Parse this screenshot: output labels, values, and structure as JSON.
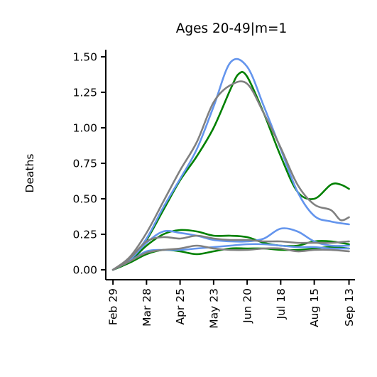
{
  "chart_data": {
    "type": "line",
    "title": "Ages 20-49|m=1",
    "xlabel": "",
    "ylabel": "Deaths",
    "ylim": [
      -0.07,
      1.55
    ],
    "xlim": [
      "2020-02-23",
      "2020-09-18"
    ],
    "grid": false,
    "legend": "none",
    "x_ticks": [
      "2020-02-29",
      "2020-03-28",
      "2020-04-25",
      "2020-05-23",
      "2020-06-20",
      "2020-07-18",
      "2020-08-15",
      "2020-09-13"
    ],
    "x_tick_labels": [
      "Feb 29",
      "Mar 28",
      "Apr 25",
      "May 23",
      "Jun 20",
      "Jul 18",
      "Aug 15",
      "Sep 13"
    ],
    "y_ticks": [
      0.0,
      0.25,
      0.5,
      0.75,
      1.0,
      1.25,
      1.5
    ],
    "y_tick_labels": [
      "0.00",
      "0.25",
      "0.50",
      "0.75",
      "1.00",
      "1.25",
      "1.50"
    ],
    "series": [
      {
        "color": "#008000",
        "x": [
          "2020-02-29",
          "2020-03-14",
          "2020-03-28",
          "2020-04-11",
          "2020-04-25",
          "2020-05-09",
          "2020-05-23",
          "2020-06-06",
          "2020-06-13",
          "2020-06-20",
          "2020-07-04",
          "2020-07-18",
          "2020-08-01",
          "2020-08-15",
          "2020-08-29",
          "2020-09-06",
          "2020-09-13"
        ],
        "y": [
          0.0,
          0.06,
          0.21,
          0.42,
          0.63,
          0.8,
          1.0,
          1.27,
          1.38,
          1.36,
          1.1,
          0.8,
          0.55,
          0.5,
          0.6,
          0.6,
          0.57
        ]
      },
      {
        "color": "#6495ED",
        "x": [
          "2020-02-29",
          "2020-03-14",
          "2020-03-28",
          "2020-04-11",
          "2020-04-25",
          "2020-05-09",
          "2020-05-23",
          "2020-06-06",
          "2020-06-20",
          "2020-07-04",
          "2020-07-18",
          "2020-08-01",
          "2020-08-15",
          "2020-08-29",
          "2020-09-13"
        ],
        "y": [
          0.0,
          0.07,
          0.22,
          0.44,
          0.64,
          0.85,
          1.15,
          1.46,
          1.43,
          1.15,
          0.85,
          0.55,
          0.38,
          0.34,
          0.32
        ]
      },
      {
        "color": "#808080",
        "x": [
          "2020-02-29",
          "2020-03-14",
          "2020-03-28",
          "2020-04-11",
          "2020-04-25",
          "2020-05-09",
          "2020-05-23",
          "2020-06-06",
          "2020-06-20",
          "2020-07-04",
          "2020-07-18",
          "2020-08-01",
          "2020-08-15",
          "2020-08-29",
          "2020-09-06",
          "2020-09-13"
        ],
        "y": [
          0.0,
          0.09,
          0.26,
          0.48,
          0.7,
          0.9,
          1.18,
          1.3,
          1.31,
          1.1,
          0.86,
          0.6,
          0.46,
          0.42,
          0.35,
          0.37
        ]
      },
      {
        "color": "#008000",
        "x": [
          "2020-02-29",
          "2020-03-14",
          "2020-03-28",
          "2020-04-11",
          "2020-04-25",
          "2020-05-09",
          "2020-05-23",
          "2020-06-06",
          "2020-06-20",
          "2020-07-04",
          "2020-07-18",
          "2020-08-01",
          "2020-08-15",
          "2020-08-29",
          "2020-09-13"
        ],
        "y": [
          0.0,
          0.06,
          0.17,
          0.25,
          0.28,
          0.27,
          0.24,
          0.24,
          0.23,
          0.19,
          0.17,
          0.17,
          0.2,
          0.2,
          0.18
        ]
      },
      {
        "color": "#008000",
        "x": [
          "2020-02-29",
          "2020-03-14",
          "2020-03-28",
          "2020-04-11",
          "2020-04-25",
          "2020-05-09",
          "2020-05-23",
          "2020-06-06",
          "2020-06-20",
          "2020-07-04",
          "2020-07-18",
          "2020-08-01",
          "2020-08-15",
          "2020-08-29",
          "2020-09-13"
        ],
        "y": [
          0.0,
          0.05,
          0.11,
          0.14,
          0.13,
          0.11,
          0.13,
          0.15,
          0.15,
          0.15,
          0.14,
          0.14,
          0.15,
          0.16,
          0.15
        ]
      },
      {
        "color": "#6495ED",
        "x": [
          "2020-02-29",
          "2020-03-14",
          "2020-03-28",
          "2020-04-11",
          "2020-04-25",
          "2020-05-09",
          "2020-05-23",
          "2020-06-06",
          "2020-06-20",
          "2020-07-04",
          "2020-07-18",
          "2020-08-01",
          "2020-08-15",
          "2020-08-29",
          "2020-09-13"
        ],
        "y": [
          0.0,
          0.07,
          0.19,
          0.27,
          0.26,
          0.24,
          0.21,
          0.2,
          0.2,
          0.22,
          0.29,
          0.27,
          0.2,
          0.17,
          0.17
        ]
      },
      {
        "color": "#6495ED",
        "x": [
          "2020-02-29",
          "2020-03-14",
          "2020-03-28",
          "2020-04-11",
          "2020-04-25",
          "2020-05-09",
          "2020-05-23",
          "2020-06-06",
          "2020-06-20",
          "2020-07-04",
          "2020-07-18",
          "2020-08-01",
          "2020-08-15",
          "2020-08-29",
          "2020-09-13"
        ],
        "y": [
          0.0,
          0.06,
          0.13,
          0.14,
          0.14,
          0.15,
          0.16,
          0.17,
          0.18,
          0.18,
          0.17,
          0.16,
          0.16,
          0.15,
          0.15
        ]
      },
      {
        "color": "#808080",
        "x": [
          "2020-02-29",
          "2020-03-14",
          "2020-03-28",
          "2020-04-11",
          "2020-04-25",
          "2020-05-09",
          "2020-05-23",
          "2020-06-06",
          "2020-06-20",
          "2020-07-04",
          "2020-07-18",
          "2020-08-01",
          "2020-08-15",
          "2020-08-29",
          "2020-09-13"
        ],
        "y": [
          0.0,
          0.08,
          0.2,
          0.23,
          0.22,
          0.24,
          0.22,
          0.21,
          0.21,
          0.2,
          0.2,
          0.19,
          0.19,
          0.19,
          0.2
        ]
      },
      {
        "color": "#808080",
        "x": [
          "2020-02-29",
          "2020-03-14",
          "2020-03-28",
          "2020-04-11",
          "2020-04-25",
          "2020-05-09",
          "2020-05-23",
          "2020-06-06",
          "2020-06-20",
          "2020-07-04",
          "2020-07-18",
          "2020-08-01",
          "2020-08-15",
          "2020-08-29",
          "2020-09-13"
        ],
        "y": [
          0.0,
          0.06,
          0.12,
          0.14,
          0.15,
          0.17,
          0.15,
          0.14,
          0.14,
          0.15,
          0.15,
          0.13,
          0.14,
          0.14,
          0.13
        ]
      }
    ]
  }
}
